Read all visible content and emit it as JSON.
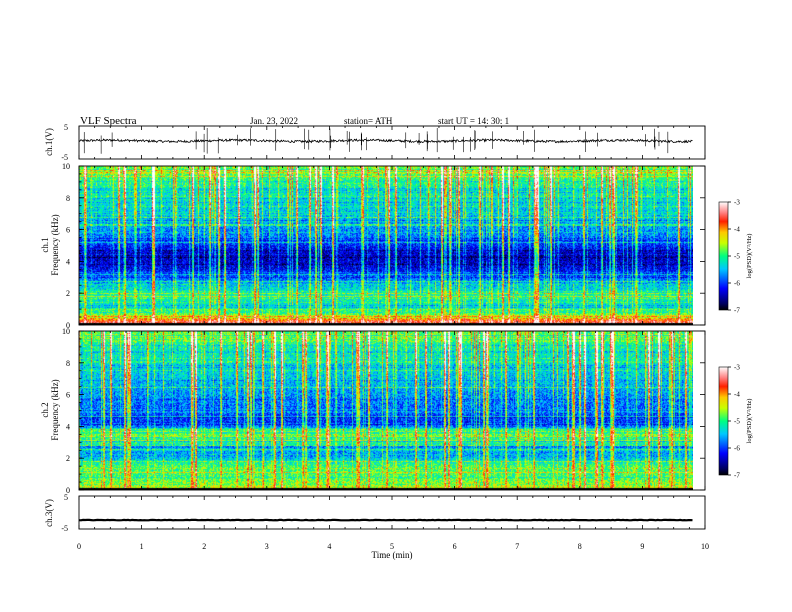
{
  "header": {
    "title": "VLF  Spectra",
    "date": "Jan. 23, 2022",
    "station": "station= ATH",
    "start": "start  UT  =   14: 30: 1"
  },
  "chart_data": [
    {
      "type": "line",
      "panel": "ch1-waveform",
      "ylabel": "ch.1(V)",
      "ytick_labels": [
        "5",
        "-5"
      ],
      "ylim": [
        -5,
        5
      ],
      "xlim": [
        0,
        10
      ],
      "baseline": 0.5,
      "noise": 0.35,
      "spike_count": 40,
      "data_end_min": 9.8
    },
    {
      "type": "heatmap",
      "panel": "ch1-spectrogram",
      "ylabel": "ch.1\nFrequency (kHz)",
      "ylabel_lines": [
        "ch.1",
        "Frequency (kHz)"
      ],
      "yticks": [
        0,
        2,
        4,
        6,
        8,
        10
      ],
      "ytick_labels": [
        "0",
        "2",
        "4",
        "6",
        "8",
        "10"
      ],
      "ylim": [
        0,
        10
      ],
      "xlim": [
        0,
        10
      ],
      "data_end_min": 9.8,
      "colorbar": {
        "label": "log(PSD)(V²/Hz)",
        "ticks": [
          -7,
          -6,
          -5,
          -4,
          -3
        ],
        "tick_labels": [
          "-7",
          "-6",
          "-5",
          "-4",
          "-3"
        ],
        "range": [
          -7,
          -3
        ]
      },
      "band_profile_log_psd": [
        {
          "f_khz": 0.2,
          "level": -3.6
        },
        {
          "f_khz": 0.6,
          "level": -4.8
        },
        {
          "f_khz": 1.2,
          "level": -5.4
        },
        {
          "f_khz": 1.8,
          "level": -5.2
        },
        {
          "f_khz": 2.4,
          "level": -5.5
        },
        {
          "f_khz": 3.0,
          "level": -6.0
        },
        {
          "f_khz": 3.6,
          "level": -6.4
        },
        {
          "f_khz": 4.4,
          "level": -6.6
        },
        {
          "f_khz": 5.5,
          "level": -5.9
        },
        {
          "f_khz": 7.0,
          "level": -5.6
        },
        {
          "f_khz": 9.0,
          "level": -5.2
        },
        {
          "f_khz": 10.0,
          "level": -4.9
        }
      ]
    },
    {
      "type": "heatmap",
      "panel": "ch2-spectrogram",
      "ylabel": "ch.2\nFrequency (kHz)",
      "ylabel_lines": [
        "ch.2",
        "Frequency (kHz)"
      ],
      "yticks": [
        0,
        2,
        4,
        6,
        8,
        10
      ],
      "ytick_labels": [
        "0",
        "2",
        "4",
        "6",
        "8",
        "10"
      ],
      "ylim": [
        0,
        10
      ],
      "xlim": [
        0,
        10
      ],
      "data_end_min": 9.8,
      "colorbar": {
        "label": "log(PSD)(V²/Hz)",
        "ticks": [
          -7,
          -6,
          -5,
          -4,
          -3
        ],
        "tick_labels": [
          "-7",
          "-6",
          "-5",
          "-4",
          "-3"
        ],
        "range": [
          -7,
          -3
        ]
      },
      "band_profile_log_psd": [
        {
          "f_khz": 0.2,
          "level": -4.6
        },
        {
          "f_khz": 0.8,
          "level": -5.0
        },
        {
          "f_khz": 1.5,
          "level": -5.0
        },
        {
          "f_khz": 2.2,
          "level": -5.8
        },
        {
          "f_khz": 2.8,
          "level": -5.6
        },
        {
          "f_khz": 3.4,
          "level": -4.9
        },
        {
          "f_khz": 4.2,
          "level": -6.2
        },
        {
          "f_khz": 5.5,
          "level": -5.9
        },
        {
          "f_khz": 7.0,
          "level": -5.6
        },
        {
          "f_khz": 9.0,
          "level": -5.3
        },
        {
          "f_khz": 10.0,
          "level": -5.0
        }
      ]
    },
    {
      "type": "line",
      "panel": "ch3-waveform",
      "ylabel": "ch.3(V)",
      "ytick_labels": [
        "5",
        "-5"
      ],
      "ylim": [
        -5,
        5
      ],
      "xlim": [
        0,
        10
      ],
      "baseline": -2.3,
      "noise": 0.15,
      "data_end_min": 9.8,
      "xticks": [
        0,
        1,
        2,
        3,
        4,
        5,
        6,
        7,
        8,
        9,
        10
      ],
      "xtick_labels": [
        "0",
        "1",
        "2",
        "3",
        "4",
        "5",
        "6",
        "7",
        "8",
        "9",
        "10"
      ],
      "xlabel": "Time  (min)"
    }
  ]
}
